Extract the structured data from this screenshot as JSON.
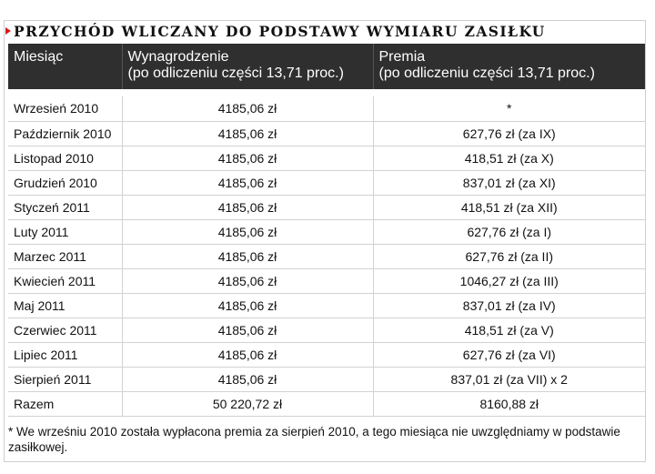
{
  "title": "PRZYCHÓD WLICZANY DO PODSTAWY WYMIARU ZASIŁKU",
  "headers": {
    "col1": "Miesiąc",
    "col2_line1": "Wynagrodzenie",
    "col2_line2": "(po odliczeniu części 13,71 proc.)",
    "col3_line1": "Premia",
    "col3_line2": "(po odliczeniu części 13,71 proc.)"
  },
  "rows": [
    {
      "month": "Wrzesień 2010",
      "salary": "4185,06 zł",
      "bonus": "*"
    },
    {
      "month": "Październik 2010",
      "salary": "4185,06 zł",
      "bonus": "627,76 zł (za IX)"
    },
    {
      "month": "Listopad 2010",
      "salary": "4185,06 zł",
      "bonus": "418,51 zł (za X)"
    },
    {
      "month": "Grudzień 2010",
      "salary": "4185,06 zł",
      "bonus": "837,01 zł (za XI)"
    },
    {
      "month": "Styczeń 2011",
      "salary": "4185,06 zł",
      "bonus": "418,51 zł (za XII)"
    },
    {
      "month": "Luty 2011",
      "salary": "4185,06 zł",
      "bonus": "627,76 zł (za I)"
    },
    {
      "month": "Marzec 2011",
      "salary": "4185,06 zł",
      "bonus": "627,76 zł (za II)"
    },
    {
      "month": "Kwiecień 2011",
      "salary": "4185,06 zł",
      "bonus": "1046,27 zł (za III)"
    },
    {
      "month": "Maj 2011",
      "salary": "4185,06 zł",
      "bonus": "837,01 zł (za IV)"
    },
    {
      "month": "Czerwiec 2011",
      "salary": "4185,06 zł",
      "bonus": "418,51 zł (za V)"
    },
    {
      "month": "Lipiec 2011",
      "salary": "4185,06 zł",
      "bonus": "627,76 zł (za VI)"
    },
    {
      "month": "Sierpień 2011",
      "salary": "4185,06 zł",
      "bonus": "837,01 zł (za VII) x 2"
    },
    {
      "month": "Razem",
      "salary": "50 220,72 zł",
      "bonus": "8160,88 zł"
    }
  ],
  "footnote": "* We wrześniu 2010 została wypłacona premia za sierpień 2010, a tego miesiąca nie uwzględniamy w podstawie zasiłkowej."
}
